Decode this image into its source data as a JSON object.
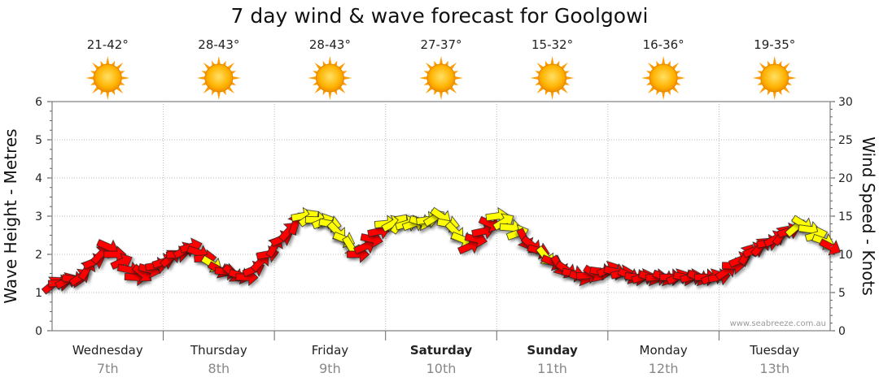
{
  "chart_data": {
    "type": "line",
    "title": "7 day wind & wave forecast for Goolgowi",
    "ylabel_left": "Wave Height - Metres",
    "ylabel_right": "Wind Speed - Knots",
    "ylim_left": [
      0,
      6
    ],
    "ylim_right": [
      0,
      30
    ],
    "yticks_left": [
      "0",
      "1",
      "2",
      "3",
      "4",
      "5",
      "6"
    ],
    "yticks_right": [
      "0",
      "5",
      "10",
      "15",
      "20",
      "25",
      "30"
    ],
    "watermark": "www.seabreeze.com.au",
    "days": [
      {
        "name": "Wednesday",
        "date": "7th",
        "temp": "21-42°",
        "bold": false
      },
      {
        "name": "Thursday",
        "date": "8th",
        "temp": "28-43°",
        "bold": false
      },
      {
        "name": "Friday",
        "date": "9th",
        "temp": "28-43°",
        "bold": false
      },
      {
        "name": "Saturday",
        "date": "10th",
        "temp": "27-37°",
        "bold": true
      },
      {
        "name": "Sunday",
        "date": "11th",
        "temp": "15-32°",
        "bold": true
      },
      {
        "name": "Monday",
        "date": "12th",
        "temp": "16-36°",
        "bold": false
      },
      {
        "name": "Tuesday",
        "date": "13th",
        "temp": "19-35°",
        "bold": false
      }
    ],
    "series": [
      {
        "name": "Wind Speed",
        "unit": "knots",
        "x_day": [
          0.0,
          0.25,
          0.5,
          0.75,
          1.0,
          1.25,
          1.5,
          1.75,
          2.0,
          2.25,
          2.5,
          2.75,
          3.0,
          3.25,
          3.5,
          3.75,
          4.0,
          4.25,
          4.5,
          4.75,
          5.0,
          5.25,
          5.5,
          5.75,
          6.0,
          6.25,
          6.5,
          6.75,
          7.0
        ],
        "values": [
          6,
          7,
          11,
          7,
          9,
          11,
          8,
          7,
          11,
          15,
          14,
          10,
          14,
          14,
          15,
          11,
          15,
          12,
          9,
          7,
          8,
          7,
          7,
          7,
          7,
          10,
          12,
          14,
          11
        ],
        "level": [
          "low",
          "low",
          "low",
          "low",
          "low",
          "mid",
          "low",
          "low",
          "low",
          "high",
          "high",
          "low",
          "high",
          "high",
          "high",
          "low",
          "high",
          "mid",
          "low",
          "low",
          "low",
          "low",
          "low",
          "low",
          "low",
          "low",
          "mid",
          "high",
          "low"
        ]
      }
    ],
    "legend": {
      "low": "#ff0000",
      "mid": "#ff0000",
      "high": "#ffff00"
    },
    "colors": {
      "arrow_stroke": "#222222",
      "grid": "#bbbbbb",
      "sun_core": "#ffb300",
      "sun_rays": "#ff9a00"
    }
  }
}
